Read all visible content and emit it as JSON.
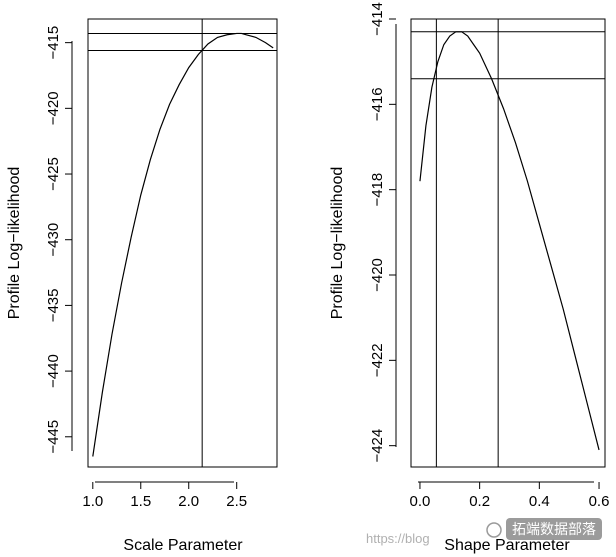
{
  "chart_data": [
    {
      "type": "line",
      "title": "",
      "xlabel": "Scale Parameter",
      "ylabel": "Profile Log−likelihood",
      "xlim": [
        0.95,
        2.92
      ],
      "ylim": [
        -447.3,
        -413.2
      ],
      "xticks": [
        1.0,
        1.5,
        2.0,
        2.5
      ],
      "xtick_labels": [
        "1.0",
        "1.5",
        "2.0",
        "2.5"
      ],
      "yticks": [
        -445,
        -440,
        -435,
        -430,
        -425,
        -420,
        -415
      ],
      "ytick_labels": [
        "−445",
        "−440",
        "−435",
        "−430",
        "−425",
        "−420",
        "−415"
      ],
      "series": [
        {
          "x": [
            1.0,
            1.1,
            1.2,
            1.3,
            1.4,
            1.5,
            1.6,
            1.7,
            1.8,
            1.9,
            2.0,
            2.1,
            2.2,
            2.3,
            2.4,
            2.5,
            2.55,
            2.6,
            2.7,
            2.8,
            2.88
          ],
          "y": [
            -446.5,
            -441.6,
            -437.2,
            -433.3,
            -429.8,
            -426.6,
            -423.9,
            -421.6,
            -419.7,
            -418.2,
            -416.9,
            -415.9,
            -415.1,
            -414.6,
            -414.4,
            -414.3,
            -414.3,
            -414.4,
            -414.6,
            -415.0,
            -415.4
          ]
        }
      ],
      "hlines": [
        -414.3,
        -415.6
      ],
      "vlines": [
        2.14
      ],
      "grid": false,
      "legend": "none"
    },
    {
      "type": "line",
      "title": "",
      "xlabel": "Shape Parameter",
      "ylabel": "Profile Log−likelihood",
      "xlim": [
        -0.03,
        0.62
      ],
      "ylim": [
        -424.5,
        -414.0
      ],
      "xticks": [
        0.0,
        0.2,
        0.4,
        0.6
      ],
      "xtick_labels": [
        "0.0",
        "0.2",
        "0.4",
        "0.6"
      ],
      "yticks": [
        -424,
        -422,
        -420,
        -418,
        -416,
        -414
      ],
      "ytick_labels": [
        "−424",
        "−422",
        "−420",
        "−418",
        "−416",
        "−414"
      ],
      "series": [
        {
          "x": [
            0.0,
            0.02,
            0.04,
            0.06,
            0.08,
            0.1,
            0.12,
            0.14,
            0.16,
            0.18,
            0.2,
            0.24,
            0.28,
            0.32,
            0.36,
            0.4,
            0.44,
            0.48,
            0.52,
            0.56,
            0.6
          ],
          "y": [
            -417.8,
            -416.5,
            -415.6,
            -415.0,
            -414.6,
            -414.4,
            -414.3,
            -414.3,
            -414.4,
            -414.6,
            -414.8,
            -415.4,
            -416.1,
            -416.9,
            -417.8,
            -418.8,
            -419.8,
            -420.8,
            -421.9,
            -423.0,
            -424.1
          ]
        }
      ],
      "hlines": [
        -414.3,
        -415.4
      ],
      "vlines": [
        0.055,
        0.262
      ],
      "grid": false,
      "legend": "none"
    }
  ],
  "watermark": {
    "text": "https://blog",
    "brand": "拓端数据部落"
  }
}
